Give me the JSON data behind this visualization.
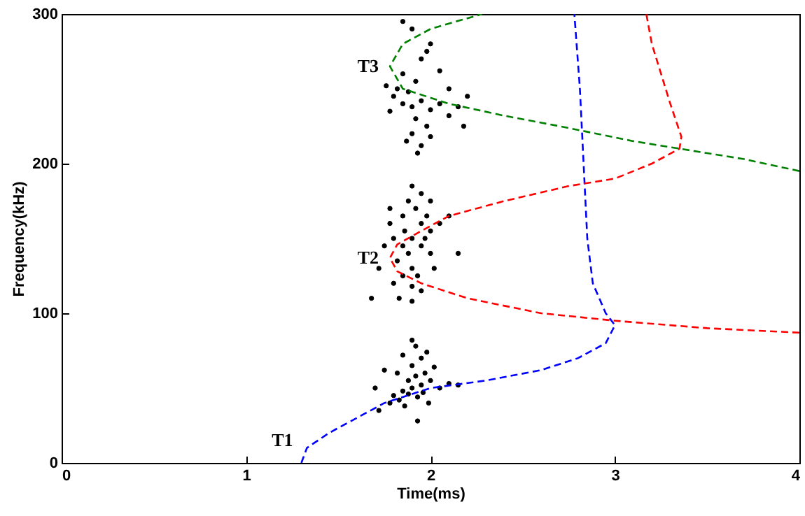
{
  "chart_data": {
    "type": "line",
    "xlabel": "Time(ms)",
    "ylabel": "Frequency(kHz)",
    "xlim": [
      0,
      4
    ],
    "ylim": [
      0,
      300
    ],
    "xticks": [
      0,
      1,
      2,
      3,
      4
    ],
    "yticks": [
      0,
      100,
      200,
      300
    ],
    "annotations": [
      "T1",
      "T2",
      "T3"
    ],
    "series": [
      {
        "type": "scatter",
        "marker": "circle",
        "color": "#000000",
        "x": [
          1.8,
          1.85,
          1.9,
          1.95,
          1.88,
          1.92,
          1.97,
          2.0,
          1.83,
          1.78,
          1.86,
          1.93,
          2.05,
          2.1,
          1.9,
          1.95,
          1.85,
          1.92,
          1.98,
          1.75,
          1.7,
          1.82,
          2.02,
          1.88,
          1.96,
          1.99,
          2.15,
          1.93,
          1.72,
          1.9,
          1.8,
          1.85,
          1.9,
          1.82,
          1.88,
          1.95,
          1.9,
          2.0,
          1.95,
          1.85,
          1.92,
          1.88,
          1.95,
          1.9,
          1.8,
          1.75,
          1.78,
          1.83,
          1.9,
          1.95,
          2.05,
          2.1,
          2.0,
          2.02,
          1.86,
          1.93,
          1.72,
          1.68,
          1.78,
          2.0,
          1.85,
          1.97,
          2.15,
          1.9,
          1.98,
          1.8,
          1.85,
          1.9,
          1.95,
          2.0,
          2.05,
          2.1,
          2.15,
          1.82,
          1.88,
          1.92,
          1.98,
          1.9,
          1.95,
          1.93,
          1.87,
          2.0,
          1.78,
          2.2,
          1.85,
          1.95,
          2.0,
          1.9,
          1.98,
          2.05,
          1.85,
          1.92,
          2.1,
          1.76,
          2.18
        ],
        "values": [
          45,
          48,
          50,
          52,
          55,
          58,
          60,
          55,
          42,
          40,
          38,
          44,
          50,
          53,
          65,
          70,
          72,
          78,
          74,
          62,
          50,
          60,
          64,
          46,
          47,
          40,
          52,
          28,
          35,
          82,
          120,
          125,
          130,
          135,
          140,
          145,
          150,
          155,
          160,
          165,
          170,
          175,
          180,
          185,
          150,
          145,
          160,
          110,
          108,
          115,
          160,
          165,
          140,
          130,
          155,
          125,
          130,
          110,
          170,
          175,
          145,
          150,
          140,
          118,
          165,
          245,
          240,
          238,
          242,
          236,
          240,
          232,
          238,
          250,
          248,
          230,
          225,
          220,
          212,
          207,
          215,
          218,
          235,
          245,
          260,
          270,
          280,
          290,
          275,
          262,
          295,
          255,
          250,
          252,
          225
        ]
      },
      {
        "line_style": "dashed",
        "color": "#0000ff",
        "x": [
          1.3,
          1.33,
          1.45,
          1.6,
          1.75,
          2.0,
          2.3,
          2.6,
          2.8,
          2.95,
          3.0,
          2.95,
          2.88,
          2.85,
          2.83,
          2.81,
          2.78
        ],
        "values": [
          0,
          10,
          20,
          30,
          40,
          50,
          55,
          62,
          70,
          80,
          92,
          100,
          120,
          150,
          200,
          250,
          300
        ]
      },
      {
        "line_style": "dashed",
        "color": "#ff0000",
        "x": [
          4.0,
          3.5,
          3.0,
          2.6,
          2.2,
          1.95,
          1.82,
          1.78,
          1.82,
          1.95,
          2.1,
          2.4,
          2.75,
          3.0,
          3.2,
          3.35,
          3.36,
          3.3,
          3.25,
          3.2,
          3.17
        ],
        "values": [
          87,
          90,
          95,
          100,
          110,
          120,
          128,
          137,
          146,
          155,
          165,
          175,
          185,
          190,
          200,
          210,
          218,
          240,
          260,
          280,
          300
        ]
      },
      {
        "line_style": "dashed",
        "color": "#008000",
        "x": [
          4.0,
          3.7,
          3.35,
          3.1,
          2.9,
          2.7,
          2.4,
          2.1,
          1.85,
          1.78,
          1.85,
          2.0,
          2.28
        ],
        "values": [
          195,
          203,
          210,
          215,
          220,
          225,
          232,
          240,
          250,
          265,
          280,
          290,
          300
        ]
      }
    ]
  }
}
